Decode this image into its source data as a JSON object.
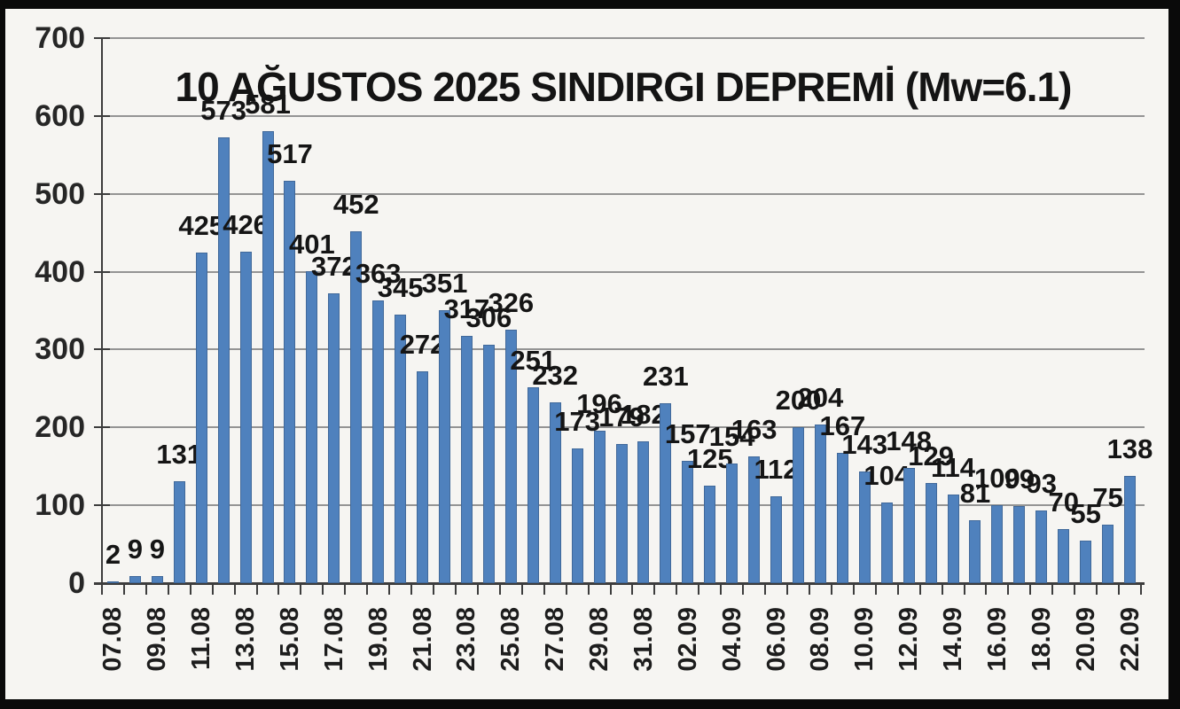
{
  "chart_data": {
    "type": "bar",
    "title": "10 AĞUSTOS 2025 SINDIRGI DEPREMİ (Mw=6.1)",
    "categories": [
      "07.08",
      "08.08",
      "09.08",
      "10.08",
      "11.08",
      "12.08",
      "13.08",
      "14.08",
      "15.08",
      "16.08",
      "17.08",
      "18.08",
      "19.08",
      "20.08",
      "21.08",
      "22.08",
      "23.08",
      "24.08",
      "25.08",
      "26.08",
      "27.08",
      "28.08",
      "29.08",
      "30.08",
      "31.08",
      "01.09",
      "02.09",
      "03.09",
      "04.09",
      "05.09",
      "06.09",
      "07.09",
      "08.09",
      "09.09",
      "10.09",
      "11.09",
      "12.09",
      "13.09",
      "14.09",
      "15.09",
      "16.09",
      "17.09",
      "18.09",
      "19.09",
      "20.09",
      "21.09",
      "22.09"
    ],
    "values": [
      2,
      9,
      9,
      131,
      425,
      573,
      426,
      581,
      517,
      401,
      372,
      452,
      363,
      345,
      272,
      351,
      317,
      306,
      326,
      251,
      232,
      173,
      196,
      179,
      182,
      231,
      157,
      125,
      154,
      163,
      112,
      200,
      204,
      167,
      143,
      104,
      148,
      129,
      114,
      81,
      100,
      99,
      93,
      70,
      55,
      75,
      138
    ],
    "data_labels_shown": true,
    "x_tick_labels": [
      "07.08",
      "09.08",
      "11.08",
      "13.08",
      "15.08",
      "17.08",
      "19.08",
      "21.08",
      "23.08",
      "25.08",
      "27.08",
      "29.08",
      "31.08",
      "02.09",
      "04.09",
      "06.09",
      "08.09",
      "10.09",
      "12.09",
      "14.09",
      "16.09",
      "18.09",
      "20.09",
      "22.09"
    ],
    "x_label_step": 2,
    "xlabel": "",
    "ylabel": "",
    "ylim": [
      0,
      700
    ],
    "y_ticks": [
      0,
      100,
      200,
      300,
      400,
      500,
      600,
      700
    ],
    "grid": "horizontal",
    "legend": "none",
    "bar_color": "#4f81bd",
    "bar_border_color": "#41699a",
    "gridline_color": "#949494",
    "axis_color": "#3d3d3d",
    "text_color": "#151515",
    "background_color": "#f6f5f2",
    "frame_color": "#0a0a0a"
  }
}
